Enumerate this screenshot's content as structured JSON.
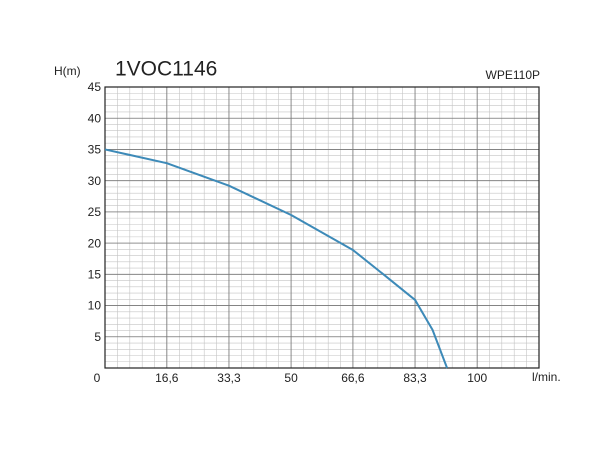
{
  "chart_data": {
    "type": "line",
    "title": "1VOC1146",
    "subtitle": "WPE110P",
    "y_label": "H(m)",
    "x_label": "l/min.",
    "x": [
      0,
      16.6,
      33.3,
      50,
      66.6,
      75,
      83.3,
      88,
      91.9
    ],
    "values": [
      35,
      32.8,
      29.2,
      24.5,
      18.9,
      14.9,
      10.9,
      6.1,
      0
    ],
    "color": "#3d8ab8",
    "xlim": [
      0,
      116.6
    ],
    "xticks": [
      0,
      {
        "value": 16.6,
        "label": "16,6"
      },
      {
        "value": 33.3,
        "label": "33,3"
      },
      50,
      {
        "value": 66.6,
        "label": "66,6"
      },
      {
        "value": 83.3,
        "label": "83,3"
      },
      100
    ],
    "ylim": [
      0,
      45
    ],
    "yticks": [
      5,
      10,
      15,
      20,
      25,
      30,
      35,
      40,
      45
    ],
    "grid": true
  }
}
